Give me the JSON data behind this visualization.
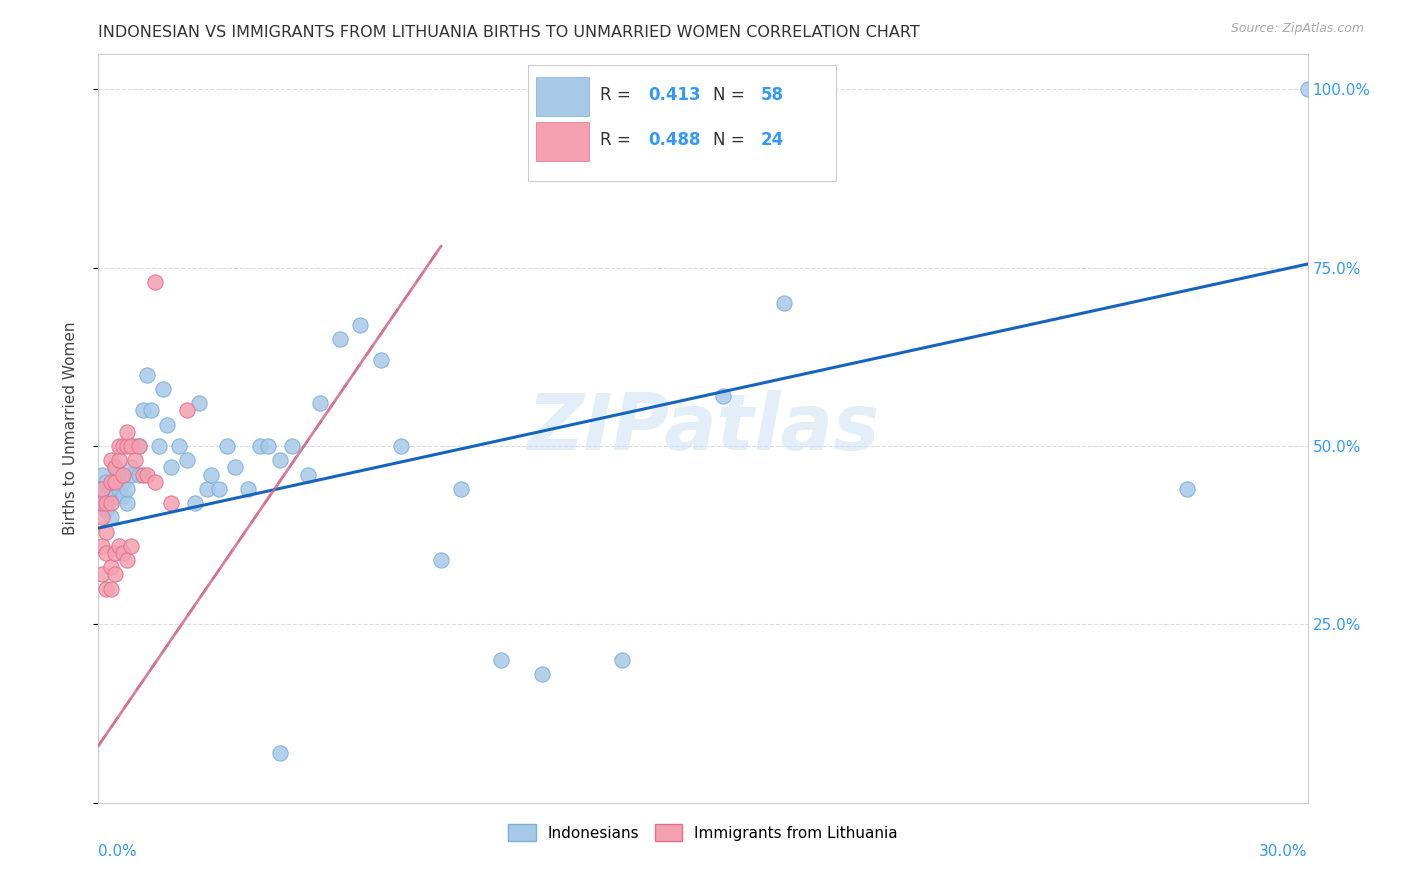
{
  "title": "INDONESIAN VS IMMIGRANTS FROM LITHUANIA BIRTHS TO UNMARRIED WOMEN CORRELATION CHART",
  "source": "Source: ZipAtlas.com",
  "ylabel": "Births to Unmarried Women",
  "xlim": [
    0.0,
    0.3
  ],
  "ylim": [
    0.0,
    1.05
  ],
  "yticks": [
    0.0,
    0.25,
    0.5,
    0.75,
    1.0
  ],
  "ytick_labels": [
    "",
    "25.0%",
    "50.0%",
    "75.0%",
    "100.0%"
  ],
  "watermark": "ZIPatlas",
  "blue_color": "#a8c8e8",
  "pink_color": "#f4a0b0",
  "line_blue": "#1565C0",
  "line_pink_dashed": "#e8a0b0",
  "indo_r": "0.413",
  "indo_n": "58",
  "lith_r": "0.488",
  "lith_n": "24",
  "indo_line_x0": 0.0,
  "indo_line_y0": 0.385,
  "indo_line_x1": 0.3,
  "indo_line_y1": 0.755,
  "lith_line_x0": 0.0,
  "lith_line_y0": 0.1,
  "lith_line_x1": 0.1,
  "lith_line_y1": 0.72,
  "indonesian_x": [
    0.001,
    0.001,
    0.001,
    0.002,
    0.002,
    0.002,
    0.003,
    0.003,
    0.004,
    0.004,
    0.005,
    0.005,
    0.006,
    0.006,
    0.007,
    0.007,
    0.008,
    0.008,
    0.009,
    0.01,
    0.01,
    0.011,
    0.012,
    0.013,
    0.015,
    0.016,
    0.017,
    0.018,
    0.02,
    0.022,
    0.024,
    0.025,
    0.027,
    0.028,
    0.03,
    0.032,
    0.034,
    0.037,
    0.04,
    0.042,
    0.045,
    0.048,
    0.052,
    0.055,
    0.06,
    0.065,
    0.07,
    0.075,
    0.085,
    0.09,
    0.1,
    0.11,
    0.13,
    0.155,
    0.17,
    0.27,
    0.3,
    0.045
  ],
  "indonesian_y": [
    0.42,
    0.44,
    0.46,
    0.41,
    0.43,
    0.45,
    0.4,
    0.44,
    0.43,
    0.47,
    0.44,
    0.46,
    0.43,
    0.45,
    0.42,
    0.44,
    0.46,
    0.47,
    0.5,
    0.46,
    0.5,
    0.55,
    0.6,
    0.55,
    0.5,
    0.58,
    0.53,
    0.47,
    0.5,
    0.48,
    0.42,
    0.56,
    0.44,
    0.46,
    0.44,
    0.5,
    0.47,
    0.44,
    0.5,
    0.5,
    0.48,
    0.5,
    0.46,
    0.56,
    0.65,
    0.67,
    0.62,
    0.5,
    0.34,
    0.44,
    0.2,
    0.18,
    0.2,
    0.57,
    0.7,
    0.44,
    1.0,
    0.07
  ],
  "lithuania_x": [
    0.001,
    0.001,
    0.001,
    0.002,
    0.002,
    0.003,
    0.003,
    0.003,
    0.004,
    0.004,
    0.005,
    0.005,
    0.006,
    0.006,
    0.007,
    0.007,
    0.008,
    0.009,
    0.01,
    0.011,
    0.012,
    0.014,
    0.018,
    0.022
  ],
  "lithuania_y": [
    0.4,
    0.42,
    0.44,
    0.38,
    0.42,
    0.42,
    0.45,
    0.48,
    0.45,
    0.47,
    0.48,
    0.5,
    0.46,
    0.5,
    0.5,
    0.52,
    0.5,
    0.48,
    0.5,
    0.46,
    0.46,
    0.45,
    0.42,
    0.55
  ]
}
